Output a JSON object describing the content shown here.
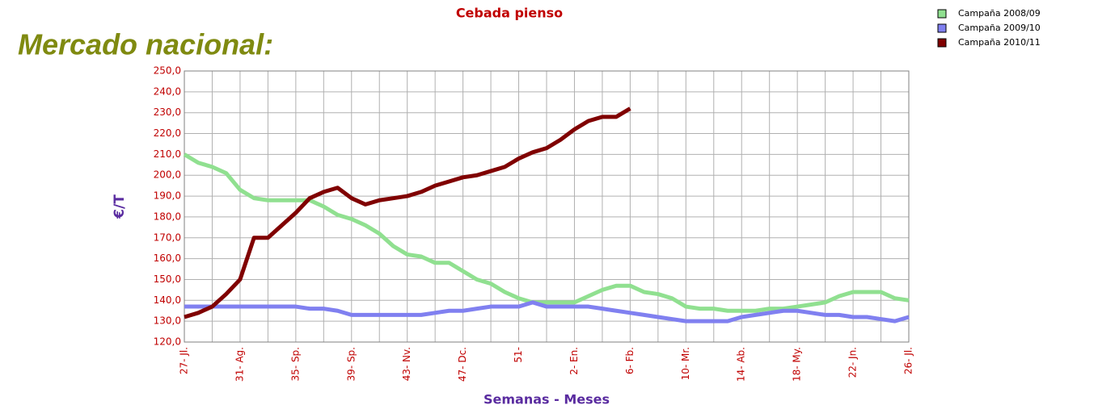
{
  "heading": "Mercado nacional:",
  "chart_data": {
    "type": "line",
    "title": "Cebada pienso",
    "x_label": "Semanas - Meses",
    "y_label": "€/T",
    "categories": [
      "27- Jl.",
      null,
      null,
      null,
      "31- Ag.",
      null,
      null,
      null,
      "35- Sp.",
      null,
      null,
      null,
      "39- Sp.",
      null,
      null,
      null,
      "43- Nv.",
      null,
      null,
      null,
      "47- Dc.",
      null,
      null,
      null,
      "51-",
      null,
      null,
      null,
      "2- En.",
      null,
      null,
      null,
      "6- Fb.",
      null,
      null,
      null,
      "10- Mr.",
      null,
      null,
      null,
      "14- Ab.",
      null,
      null,
      null,
      "18- My.",
      null,
      null,
      null,
      "22- Jn.",
      null,
      null,
      null,
      "26- Jl."
    ],
    "ylim": [
      120,
      250
    ],
    "yticks": [
      {
        "value": 120,
        "label": "120,0"
      },
      {
        "value": 130,
        "label": "130,0"
      },
      {
        "value": 140,
        "label": "140,0"
      },
      {
        "value": 150,
        "label": "150,0"
      },
      {
        "value": 160,
        "label": "160,0"
      },
      {
        "value": 170,
        "label": "170,0"
      },
      {
        "value": 180,
        "label": "180,0"
      },
      {
        "value": 190,
        "label": "190,0"
      },
      {
        "value": 200,
        "label": "200,0"
      },
      {
        "value": 210,
        "label": "210,0"
      },
      {
        "value": 220,
        "label": "220,0"
      },
      {
        "value": 230,
        "label": "230,0"
      },
      {
        "value": 240,
        "label": "240,0"
      },
      {
        "value": 250,
        "label": "250,0"
      }
    ],
    "grid": true,
    "legend": "top-right",
    "series": [
      {
        "name": "Campaña 2008/09",
        "color": "#90e090",
        "values": [
          210,
          206,
          204,
          201,
          193,
          189,
          188,
          188,
          188,
          188,
          185,
          181,
          179,
          176,
          172,
          166,
          162,
          161,
          158,
          158,
          154,
          150,
          148,
          144,
          141,
          139,
          139,
          139,
          139,
          142,
          145,
          147,
          147,
          144,
          143,
          141,
          137,
          136,
          136,
          135,
          135,
          135,
          136,
          136,
          137,
          138,
          139,
          142,
          144,
          144,
          144,
          141,
          140
        ]
      },
      {
        "name": "Campaña 2009/10",
        "color": "#8080f0",
        "values": [
          137,
          137,
          137,
          137,
          137,
          137,
          137,
          137,
          137,
          136,
          136,
          135,
          133,
          133,
          133,
          133,
          133,
          133,
          134,
          135,
          135,
          136,
          137,
          137,
          137,
          139,
          137,
          137,
          137,
          137,
          136,
          135,
          134,
          133,
          132,
          131,
          130,
          130,
          130,
          130,
          132,
          133,
          134,
          135,
          135,
          134,
          133,
          133,
          132,
          132,
          131,
          130,
          132
        ]
      },
      {
        "name": "Campaña 2010/11",
        "color": "#800000",
        "values": [
          132,
          134,
          137,
          143,
          150,
          170,
          170,
          176,
          182,
          189,
          192,
          194,
          189,
          186,
          188,
          189,
          190,
          192,
          195,
          197,
          199,
          200,
          202,
          204,
          208,
          211,
          213,
          217,
          222,
          226,
          228,
          228,
          232,
          null,
          null,
          null,
          null,
          null,
          null,
          null,
          null,
          null,
          null,
          null,
          null,
          null,
          null,
          null,
          null,
          null,
          null,
          null,
          null
        ]
      }
    ]
  }
}
